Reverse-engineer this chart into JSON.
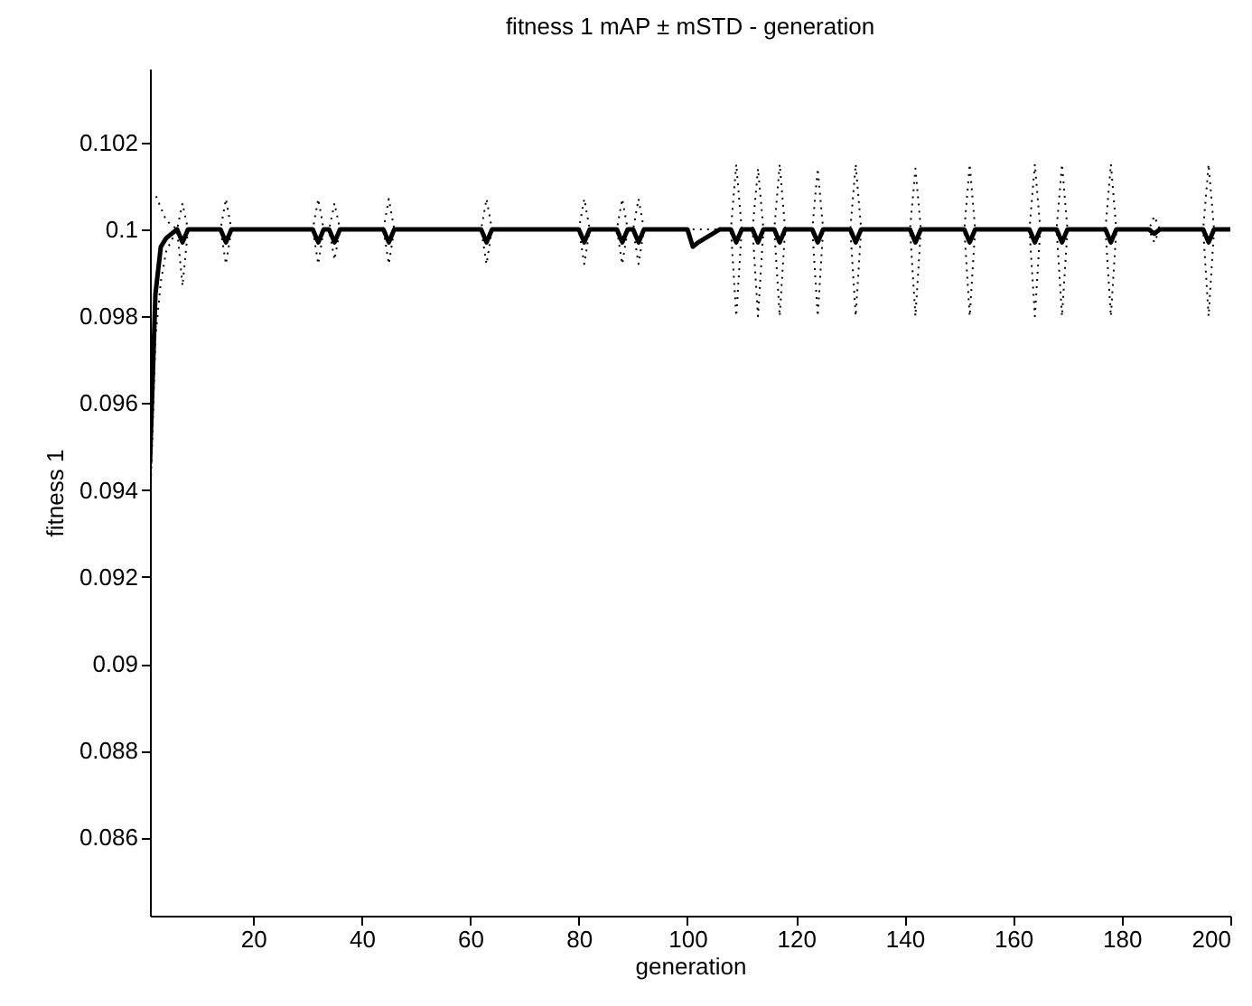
{
  "chart_data": {
    "type": "line",
    "title": "fitness 1 mAP ± mSTD - generation",
    "xlabel": "generation",
    "ylabel": "fitness 1",
    "xlim": [
      1,
      200
    ],
    "xticks": [
      20,
      40,
      60,
      80,
      100,
      120,
      140,
      160,
      180,
      200
    ],
    "ylim": [
      0.0842,
      0.1037
    ],
    "yticks": [
      0.086,
      0.088,
      0.09,
      0.092,
      0.094,
      0.096,
      0.098,
      0.1,
      0.102
    ],
    "grid": false,
    "series": [
      {
        "color": "#000000",
        "line_style": "solid",
        "x": [
          1,
          2,
          3,
          4,
          6,
          7,
          8,
          14,
          15,
          16,
          31,
          32,
          33,
          34,
          35,
          36,
          44,
          45,
          46,
          62,
          63,
          64,
          80,
          81,
          82,
          87,
          88,
          89,
          90,
          91,
          92,
          100,
          101,
          102,
          106,
          108,
          109,
          110,
          112,
          113,
          114,
          116,
          117,
          118,
          123,
          124,
          125,
          130,
          131,
          132,
          141,
          142,
          143,
          151,
          152,
          153,
          163,
          164,
          165,
          168,
          169,
          170,
          177,
          178,
          179,
          185,
          186,
          187,
          195,
          196,
          197,
          200
        ],
        "values": [
          0.0946,
          0.0985,
          0.0996,
          0.0998,
          0.1,
          0.0997,
          0.1,
          0.1,
          0.0997,
          0.1,
          0.1,
          0.0997,
          0.1,
          0.1,
          0.0997,
          0.1,
          0.1,
          0.0997,
          0.1,
          0.1,
          0.0997,
          0.1,
          0.1,
          0.0997,
          0.1,
          0.1,
          0.0997,
          0.1,
          0.1,
          0.0997,
          0.1,
          0.1,
          0.0996,
          0.0997,
          0.1,
          0.1,
          0.0997,
          0.1,
          0.1,
          0.0997,
          0.1,
          0.1,
          0.0997,
          0.1,
          0.1,
          0.0997,
          0.1,
          0.1,
          0.0997,
          0.1,
          0.1,
          0.0997,
          0.1,
          0.1,
          0.0997,
          0.1,
          0.1,
          0.0997,
          0.1,
          0.1,
          0.0997,
          0.1,
          0.1,
          0.0997,
          0.1,
          0.1,
          0.0999,
          0.1,
          0.1,
          0.0997,
          0.1,
          0.1
        ]
      },
      {
        "color": "#000000",
        "line_style": "dotted",
        "x": [
          1,
          2,
          3,
          4,
          6,
          7,
          8,
          14,
          15,
          16,
          31,
          32,
          33,
          34,
          35,
          36,
          44,
          45,
          46,
          62,
          63,
          64,
          80,
          81,
          82,
          87,
          88,
          89,
          90,
          91,
          92,
          100,
          101,
          102,
          106,
          108,
          109,
          110,
          112,
          113,
          114,
          116,
          117,
          118,
          123,
          124,
          125,
          130,
          131,
          132,
          141,
          142,
          143,
          151,
          152,
          153,
          163,
          164,
          165,
          168,
          169,
          170,
          177,
          178,
          179,
          185,
          186,
          187,
          195,
          196,
          197,
          200
        ],
        "values": [
          0.1008,
          0.1008,
          0.1005,
          0.1002,
          0.1,
          0.1006,
          0.1,
          0.1,
          0.1007,
          0.1,
          0.1,
          0.1007,
          0.1,
          0.1,
          0.1006,
          0.1,
          0.1,
          0.1007,
          0.1,
          0.1,
          0.1007,
          0.1,
          0.1,
          0.1007,
          0.1,
          0.1,
          0.1007,
          0.1,
          0.1,
          0.1007,
          0.1,
          0.1,
          0.1,
          0.1,
          0.1,
          0.1,
          0.1015,
          0.1,
          0.1,
          0.1014,
          0.1,
          0.1,
          0.1015,
          0.1,
          0.1,
          0.1014,
          0.1,
          0.1,
          0.1015,
          0.1,
          0.1,
          0.1014,
          0.1,
          0.1,
          0.1015,
          0.1,
          0.1,
          0.1015,
          0.1,
          0.1,
          0.1015,
          0.1,
          0.1,
          0.1015,
          0.1,
          0.1,
          0.1003,
          0.1,
          0.1,
          0.1015,
          0.1,
          0.1
        ]
      },
      {
        "color": "#000000",
        "line_style": "dotted",
        "x": [
          1,
          2,
          3,
          4,
          6,
          7,
          8,
          14,
          15,
          16,
          31,
          32,
          33,
          34,
          35,
          36,
          44,
          45,
          46,
          62,
          63,
          64,
          80,
          81,
          82,
          87,
          88,
          89,
          90,
          91,
          92,
          100,
          101,
          102,
          106,
          108,
          109,
          110,
          112,
          113,
          114,
          116,
          117,
          118,
          123,
          124,
          125,
          130,
          131,
          132,
          141,
          142,
          143,
          151,
          152,
          153,
          163,
          164,
          165,
          168,
          169,
          170,
          177,
          178,
          179,
          185,
          186,
          187,
          195,
          196,
          197,
          200
        ],
        "values": [
          0.0935,
          0.0975,
          0.0988,
          0.0995,
          0.1,
          0.0987,
          0.1,
          0.1,
          0.0992,
          0.1,
          0.1,
          0.0992,
          0.1,
          0.1,
          0.0993,
          0.1,
          0.1,
          0.0992,
          0.1,
          0.1,
          0.0992,
          0.1,
          0.1,
          0.0992,
          0.1,
          0.1,
          0.0992,
          0.1,
          0.1,
          0.0992,
          0.1,
          0.1,
          0.0996,
          0.0997,
          0.1,
          0.1,
          0.098,
          0.1,
          0.1,
          0.098,
          0.1,
          0.1,
          0.098,
          0.1,
          0.1,
          0.098,
          0.1,
          0.1,
          0.098,
          0.1,
          0.1,
          0.098,
          0.1,
          0.1,
          0.098,
          0.1,
          0.1,
          0.098,
          0.1,
          0.1,
          0.098,
          0.1,
          0.1,
          0.098,
          0.1,
          0.1,
          0.0997,
          0.1,
          0.1,
          0.098,
          0.1,
          0.1
        ]
      }
    ]
  }
}
